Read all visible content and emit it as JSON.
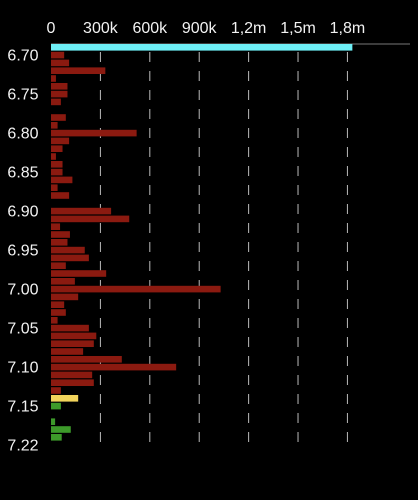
{
  "chart_data": {
    "type": "hbar",
    "categories": [
      null,
      "6.70",
      null,
      null,
      null,
      null,
      "6.75",
      null,
      null,
      null,
      null,
      "6.80",
      null,
      null,
      null,
      null,
      "6.85",
      null,
      null,
      null,
      null,
      "6.90",
      null,
      null,
      null,
      null,
      "6.95",
      null,
      null,
      null,
      null,
      "7.00",
      null,
      null,
      null,
      null,
      "7.05",
      null,
      null,
      null,
      null,
      "7.10",
      null,
      null,
      null,
      null,
      "7.15",
      null,
      null,
      null,
      null,
      "7.22"
    ],
    "values": [
      1830000,
      80000,
      110000,
      330000,
      30000,
      100000,
      100000,
      60000,
      0,
      90000,
      40000,
      520000,
      110000,
      70000,
      30000,
      70000,
      70000,
      130000,
      40000,
      110000,
      0,
      365000,
      475000,
      55000,
      115000,
      100000,
      205000,
      230000,
      90000,
      335000,
      145000,
      1030000,
      165000,
      80000,
      90000,
      40000,
      230000,
      275000,
      260000,
      195000,
      430000,
      760000,
      250000,
      260000,
      60000,
      165000,
      60000,
      0,
      25000,
      120000,
      65000,
      null
    ],
    "colors": [
      "#6ff0f7",
      "#8b1a10",
      "#8b1a10",
      "#8b1a10",
      "#8b1a10",
      "#8b1a10",
      "#8b1a10",
      "#8b1a10",
      "#8b1a10",
      "#8b1a10",
      "#8b1a10",
      "#8b1a10",
      "#8b1a10",
      "#8b1a10",
      "#8b1a10",
      "#8b1a10",
      "#8b1a10",
      "#8b1a10",
      "#8b1a10",
      "#8b1a10",
      "#8b1a10",
      "#8b1a10",
      "#8b1a10",
      "#8b1a10",
      "#8b1a10",
      "#8b1a10",
      "#8b1a10",
      "#8b1a10",
      "#8b1a10",
      "#8b1a10",
      "#8b1a10",
      "#8b1a10",
      "#8b1a10",
      "#8b1a10",
      "#8b1a10",
      "#8b1a10",
      "#8b1a10",
      "#8b1a10",
      "#8b1a10",
      "#8b1a10",
      "#8b1a10",
      "#8b1a10",
      "#8b1a10",
      "#8b1a10",
      "#8b1a10",
      "#f2d45c",
      "#3d9a2a",
      "#3d9a2a",
      "#3d9a2a",
      "#3d9a2a",
      "#3d9a2a",
      null
    ],
    "xlim": [
      0,
      2180000
    ],
    "xticks": [
      0,
      {
        "value": 300000,
        "label": "300k"
      },
      {
        "value": 600000,
        "label": "600k"
      },
      {
        "value": 900000,
        "label": "900k"
      },
      {
        "value": 1200000,
        "label": "1,2m"
      },
      {
        "value": 1500000,
        "label": "1,5m"
      },
      {
        "value": 1800000,
        "label": "1,8m"
      }
    ],
    "grid": true
  }
}
